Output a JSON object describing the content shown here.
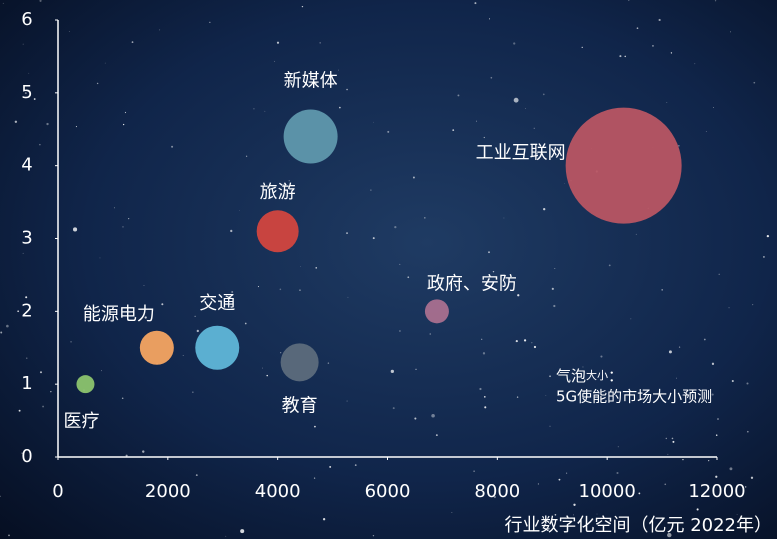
{
  "chart_data": {
    "type": "bubble",
    "categories": [
      "医疗",
      "能源电力",
      "交通",
      "教育",
      "旅游",
      "新媒体",
      "政府、安防",
      "工业互联网"
    ],
    "x": [
      500,
      1800,
      2900,
      4400,
      4000,
      4600,
      6900,
      10300
    ],
    "values": [
      1,
      1.5,
      1.5,
      1.3,
      3.1,
      4.4,
      2,
      4
    ],
    "sizes": [
      81,
      289,
      484,
      361,
      441,
      729,
      144,
      3364
    ],
    "colors": [
      "#8cc46e",
      "#f5a461",
      "#5fb6d8",
      "#5c6c7c",
      "#d2463f",
      "#5f98ad",
      "#a9708f",
      "#b85563"
    ],
    "xlim": [
      0,
      12000
    ],
    "xticks": [
      0,
      2000,
      4000,
      6000,
      8000,
      10000,
      12000
    ],
    "ylim": [
      0,
      6
    ],
    "yticks": [
      0,
      1,
      2,
      3,
      4,
      5,
      6
    ],
    "x_label": "行业数字化空间（亿元 2022年）",
    "size_note": {
      "label": "气泡",
      "small": "大小",
      "colon": "：",
      "text": "5G使能的市场大小预测"
    }
  }
}
